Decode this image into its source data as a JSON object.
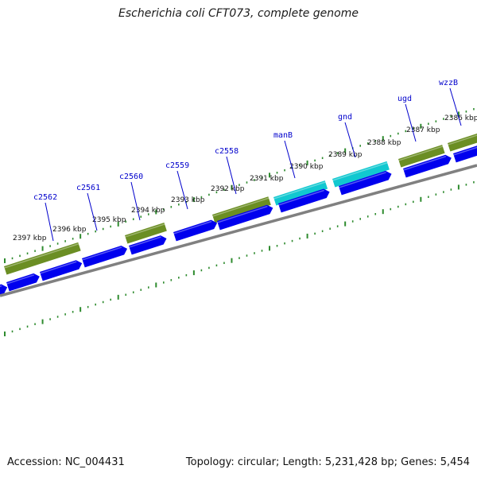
{
  "title": "Escherichia coli CFT073, complete genome",
  "footer": {
    "accession": "Accession: NC_004431",
    "info": "Topology: circular; Length: 5,231,428 bp; Genes: 5,454"
  },
  "colors": {
    "gene_label": "#0000cc",
    "feature_olive": "#6b8e23",
    "feature_cyan": "#11c8d0",
    "cds_blue": "#0000ee",
    "backbone": "#808080",
    "ticks": "#2e8b2e"
  },
  "scale_ticks": [
    {
      "label": "2397 kbp"
    },
    {
      "label": "2396 kbp"
    },
    {
      "label": "2395 kbp"
    },
    {
      "label": "2394 kbp"
    },
    {
      "label": "2393 kbp"
    },
    {
      "label": "2392 kbp"
    },
    {
      "label": "2391 kbp"
    },
    {
      "label": "2390 kbp"
    },
    {
      "label": "2389 kbp"
    },
    {
      "label": "2388 kbp"
    },
    {
      "label": "2387 kbp"
    },
    {
      "label": "2386 kbp"
    }
  ],
  "gene_labels": [
    {
      "name": "c2562"
    },
    {
      "name": "c2561"
    },
    {
      "name": "c2560"
    },
    {
      "name": "c2559"
    },
    {
      "name": "c2558"
    },
    {
      "name": "manB"
    },
    {
      "name": "gnd"
    },
    {
      "name": "ugd"
    },
    {
      "name": "wzzB"
    }
  ]
}
